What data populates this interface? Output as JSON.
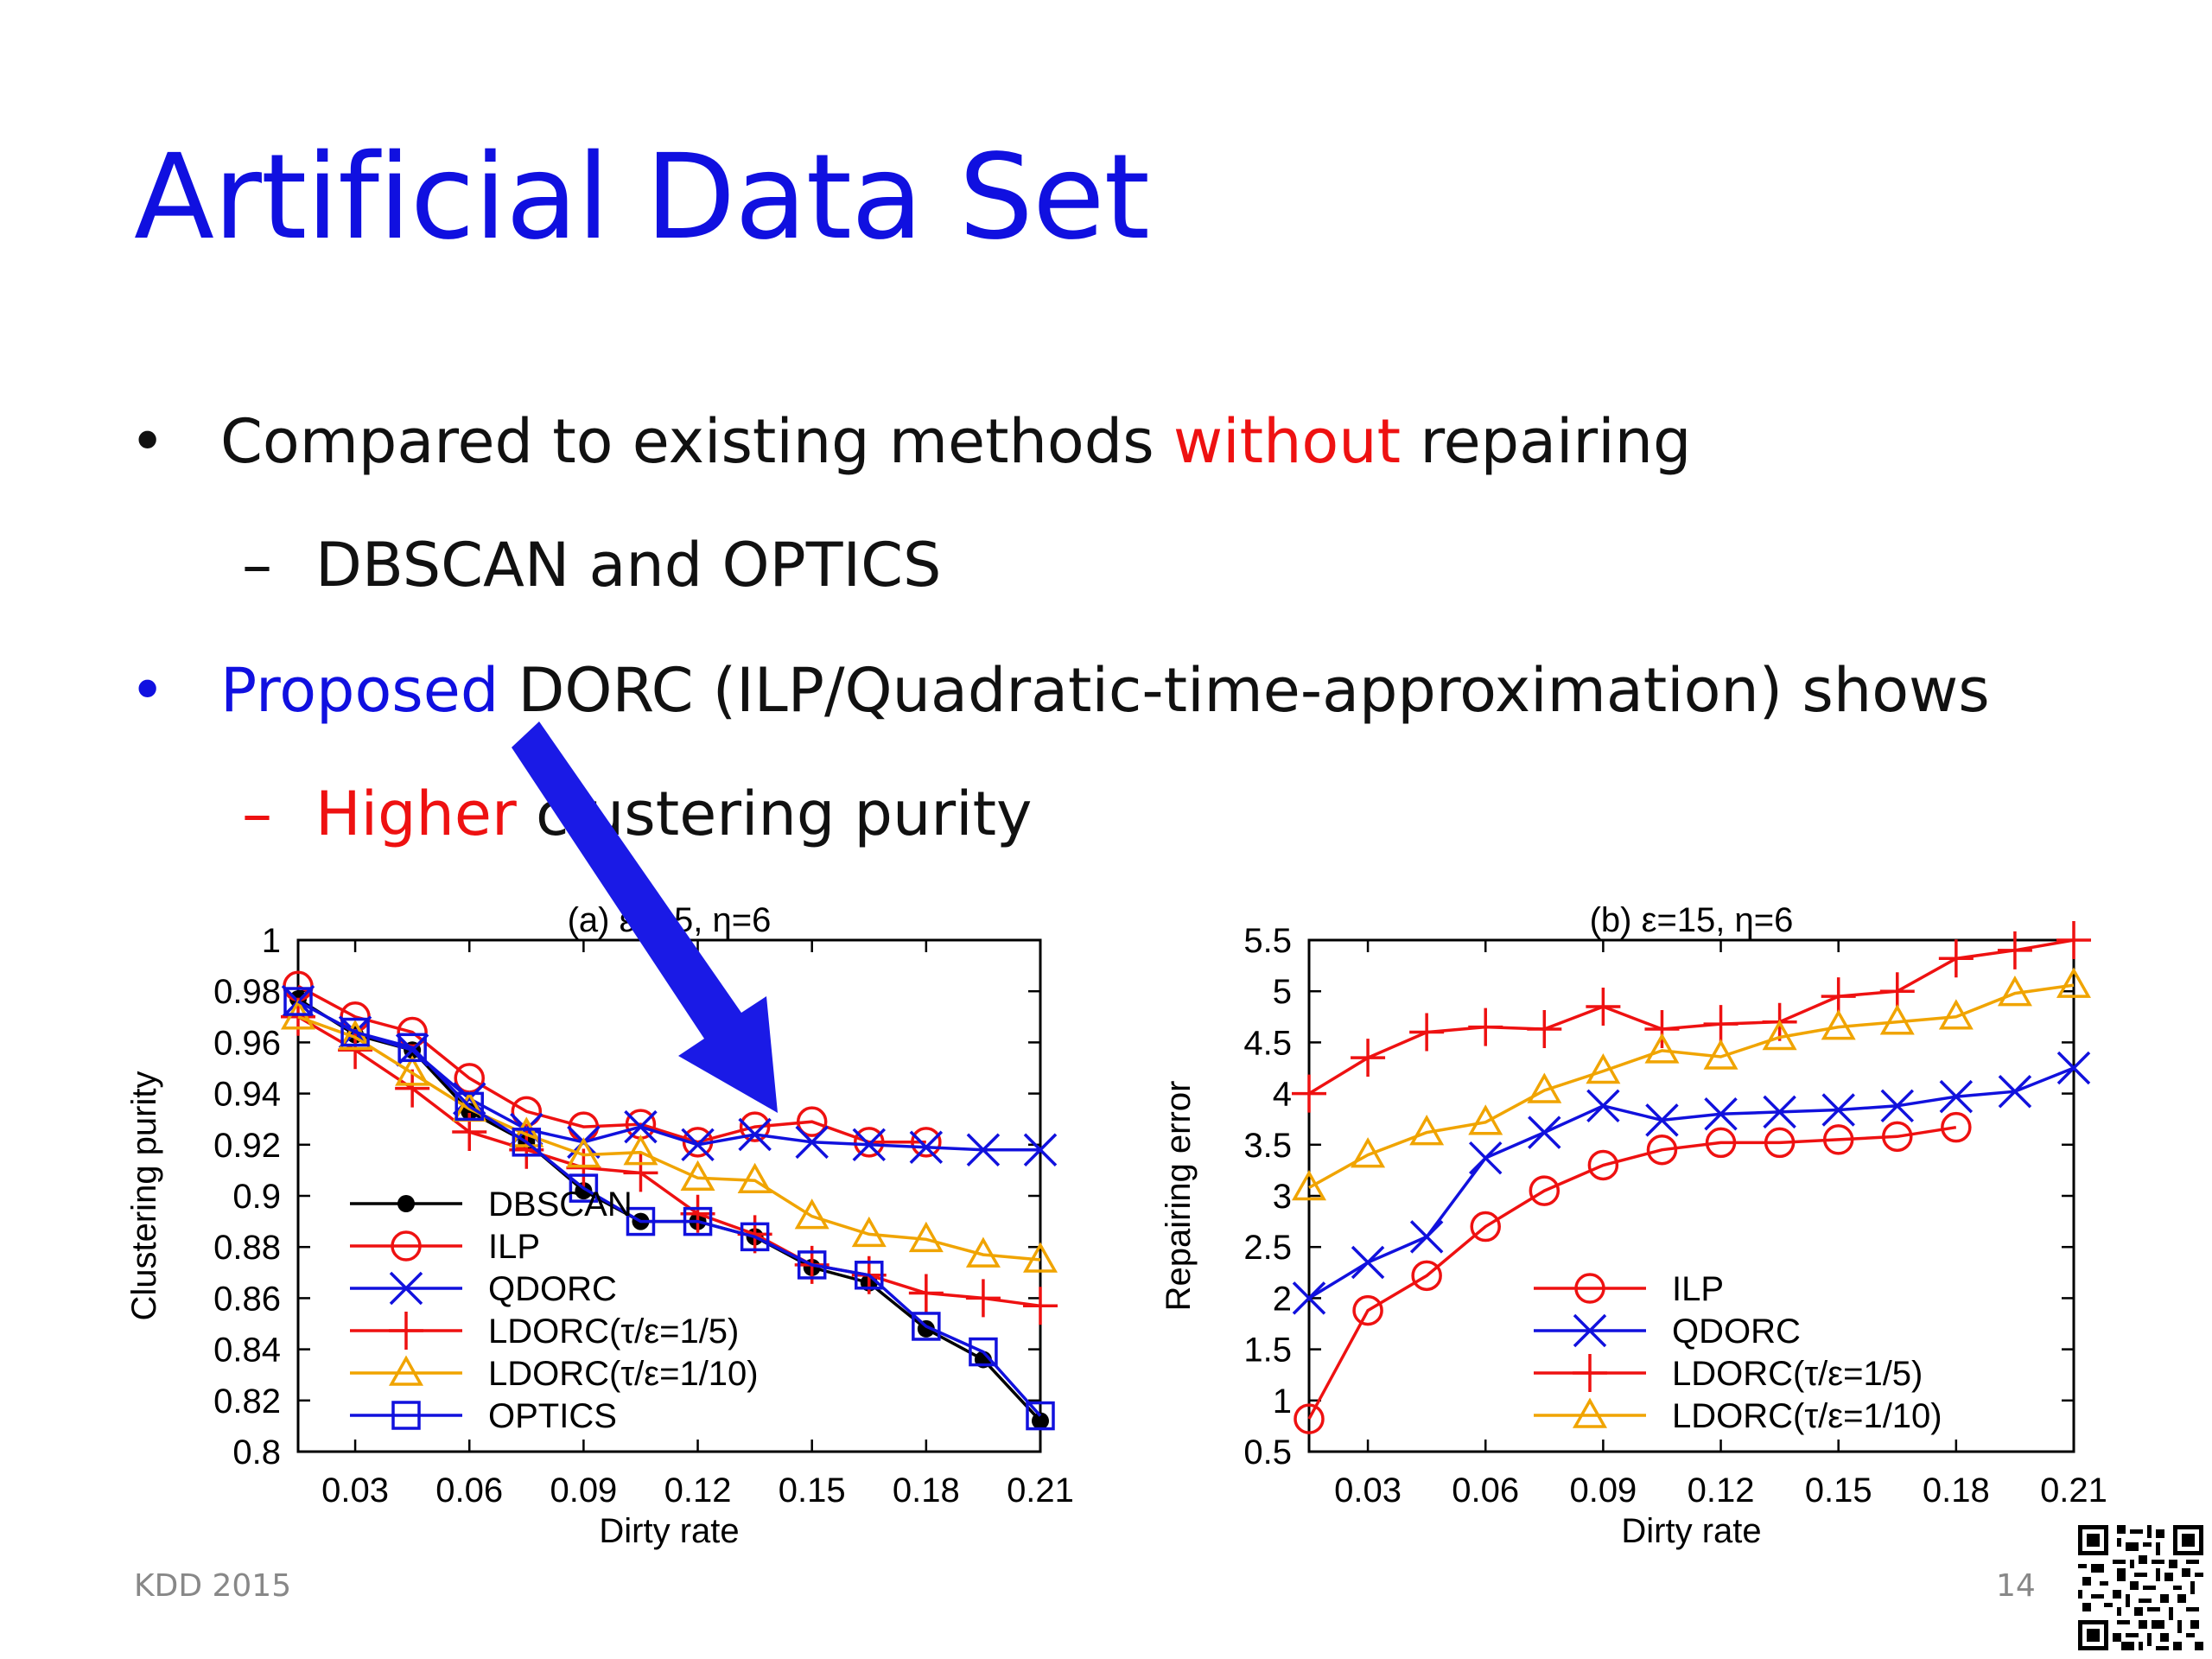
{
  "slide": {
    "title": "Artificial Data Set",
    "bullets": [
      {
        "marker": "•",
        "parts": [
          {
            "text": "Compared to existing methods ",
            "color": ""
          },
          {
            "text": "without",
            "color": "red"
          },
          {
            "text": " repairing",
            "color": ""
          }
        ]
      },
      {
        "marker": "–",
        "parts": [
          {
            "text": "DBSCAN and OPTICS",
            "color": ""
          }
        ]
      },
      {
        "marker": "•",
        "marker_color": "blue",
        "parts": [
          {
            "text": "Proposed",
            "color": "blue"
          },
          {
            "text": " DORC (ILP/Quadratic-time-approximation) shows",
            "color": ""
          }
        ]
      },
      {
        "marker": "–",
        "marker_color": "red",
        "parts": [
          {
            "text": "Higher",
            "color": "red"
          },
          {
            "text": " clustering purity",
            "color": ""
          }
        ]
      }
    ],
    "footer_left": "KDD 2015",
    "page_number": "14",
    "colors": {
      "title": "#1010e0",
      "highlight_red": "#ee1111",
      "highlight_blue": "#1010e0",
      "arrow": "#1a1ae6"
    }
  },
  "chart_data": [
    {
      "type": "line",
      "title": "(a) ε=15, η=6",
      "xlabel": "Dirty rate",
      "ylabel": "Clustering purity",
      "xlim": [
        0.015,
        0.21
      ],
      "ylim": [
        0.8,
        1.0
      ],
      "xticks": [
        "0.03",
        "0.06",
        "0.09",
        "0.12",
        "0.15",
        "0.18",
        "0.21"
      ],
      "yticks": [
        "0.8",
        "0.82",
        "0.84",
        "0.86",
        "0.88",
        "0.9",
        "0.92",
        "0.94",
        "0.96",
        "0.98",
        "1"
      ],
      "grid": false,
      "legend_position": "bottom-left",
      "series": [
        {
          "name": "DBSCAN",
          "color": "#000000",
          "marker": "dot",
          "x": [
            0.015,
            0.03,
            0.045,
            0.06,
            0.075,
            0.09,
            0.105,
            0.12,
            0.135,
            0.15,
            0.165,
            0.18,
            0.195,
            0.21
          ],
          "y": [
            0.977,
            0.963,
            0.957,
            0.933,
            0.921,
            0.902,
            0.89,
            0.89,
            0.884,
            0.872,
            0.866,
            0.848,
            0.836,
            0.812
          ]
        },
        {
          "name": "ILP",
          "color": "#ee1111",
          "marker": "circle",
          "x": [
            0.015,
            0.03,
            0.045,
            0.06,
            0.075,
            0.09,
            0.105,
            0.12,
            0.135,
            0.15,
            0.165,
            0.18
          ],
          "y": [
            0.982,
            0.97,
            0.964,
            0.946,
            0.933,
            0.927,
            0.928,
            0.921,
            0.927,
            0.929,
            0.921,
            0.921
          ]
        },
        {
          "name": "QDORC",
          "color": "#1111dd",
          "marker": "x",
          "x": [
            0.015,
            0.03,
            0.045,
            0.06,
            0.075,
            0.09,
            0.105,
            0.12,
            0.135,
            0.15,
            0.165,
            0.18,
            0.195,
            0.21
          ],
          "y": [
            0.976,
            0.964,
            0.957,
            0.938,
            0.926,
            0.921,
            0.927,
            0.92,
            0.924,
            0.921,
            0.92,
            0.919,
            0.918,
            0.918
          ]
        },
        {
          "name": "LDORC(τ/ε=1/5)",
          "color": "#ee1111",
          "marker": "plus",
          "x": [
            0.015,
            0.03,
            0.045,
            0.06,
            0.075,
            0.09,
            0.105,
            0.12,
            0.135,
            0.15,
            0.165,
            0.18,
            0.195,
            0.21
          ],
          "y": [
            0.97,
            0.957,
            0.942,
            0.925,
            0.918,
            0.911,
            0.909,
            0.893,
            0.885,
            0.873,
            0.869,
            0.862,
            0.86,
            0.857
          ]
        },
        {
          "name": "LDORC(τ/ε=1/10)",
          "color": "#f0a400",
          "marker": "triangle",
          "x": [
            0.015,
            0.03,
            0.045,
            0.06,
            0.075,
            0.09,
            0.105,
            0.12,
            0.135,
            0.15,
            0.165,
            0.18,
            0.195,
            0.21
          ],
          "y": [
            0.97,
            0.962,
            0.948,
            0.934,
            0.924,
            0.916,
            0.917,
            0.907,
            0.906,
            0.892,
            0.885,
            0.883,
            0.877,
            0.875
          ]
        },
        {
          "name": "OPTICS",
          "color": "#1111dd",
          "marker": "square",
          "x": [
            0.015,
            0.03,
            0.045,
            0.06,
            0.075,
            0.09,
            0.105,
            0.12,
            0.135,
            0.15,
            0.165,
            0.18,
            0.195,
            0.21
          ],
          "y": [
            0.976,
            0.964,
            0.958,
            0.935,
            0.921,
            0.903,
            0.89,
            0.89,
            0.884,
            0.873,
            0.869,
            0.849,
            0.839,
            0.814
          ]
        }
      ]
    },
    {
      "type": "line",
      "title": "(b) ε=15, η=6",
      "xlabel": "Dirty rate",
      "ylabel": "Repairing error",
      "xlim": [
        0.015,
        0.21
      ],
      "ylim": [
        0.5,
        5.5
      ],
      "xticks": [
        "0.03",
        "0.06",
        "0.09",
        "0.12",
        "0.15",
        "0.18",
        "0.21"
      ],
      "yticks": [
        "0.5",
        "1",
        "1.5",
        "2",
        "2.5",
        "3",
        "3.5",
        "4",
        "4.5",
        "5",
        "5.5"
      ],
      "grid": false,
      "legend_position": "bottom-right",
      "series": [
        {
          "name": "ILP",
          "color": "#ee1111",
          "marker": "circle",
          "x": [
            0.015,
            0.03,
            0.045,
            0.06,
            0.075,
            0.09,
            0.105,
            0.12,
            0.135,
            0.15,
            0.165,
            0.18
          ],
          "y": [
            0.82,
            1.88,
            2.22,
            2.7,
            3.05,
            3.3,
            3.45,
            3.52,
            3.52,
            3.55,
            3.58,
            3.67
          ]
        },
        {
          "name": "QDORC",
          "color": "#1111dd",
          "marker": "x",
          "x": [
            0.015,
            0.03,
            0.045,
            0.06,
            0.075,
            0.09,
            0.105,
            0.12,
            0.135,
            0.15,
            0.165,
            0.18,
            0.195,
            0.21
          ],
          "y": [
            2.0,
            2.35,
            2.6,
            3.37,
            3.62,
            3.88,
            3.74,
            3.8,
            3.82,
            3.84,
            3.88,
            3.97,
            4.02,
            4.25
          ]
        },
        {
          "name": "LDORC(τ/ε=1/5)",
          "color": "#ee1111",
          "marker": "plus",
          "x": [
            0.015,
            0.03,
            0.045,
            0.06,
            0.075,
            0.09,
            0.105,
            0.12,
            0.135,
            0.15,
            0.165,
            0.18,
            0.195,
            0.21
          ],
          "y": [
            4.0,
            4.35,
            4.6,
            4.65,
            4.63,
            4.85,
            4.63,
            4.68,
            4.7,
            4.95,
            5.0,
            5.32,
            5.4,
            5.5
          ]
        },
        {
          "name": "LDORC(τ/ε=1/10)",
          "color": "#f0a400",
          "marker": "triangle",
          "x": [
            0.015,
            0.03,
            0.045,
            0.06,
            0.075,
            0.09,
            0.105,
            0.12,
            0.135,
            0.15,
            0.165,
            0.18,
            0.195,
            0.21
          ],
          "y": [
            3.08,
            3.4,
            3.62,
            3.72,
            4.03,
            4.22,
            4.42,
            4.36,
            4.55,
            4.65,
            4.7,
            4.75,
            4.98,
            5.06
          ]
        }
      ]
    }
  ]
}
